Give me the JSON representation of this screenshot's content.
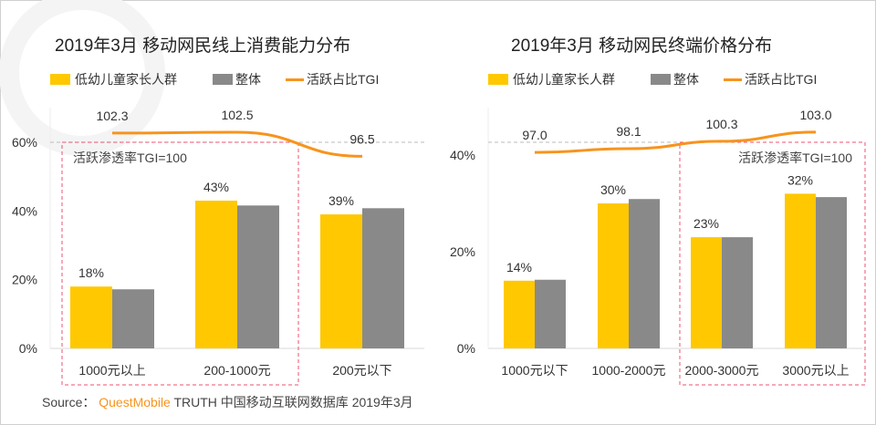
{
  "colors": {
    "child_parent": "#ffc800",
    "overall": "#898989",
    "tgi": "#f7941d",
    "box": "#f0506e"
  },
  "watermark": "QUESTMOBILE",
  "source": {
    "label": "Source：",
    "brand": "QuestMobile",
    "text": "TRUTH 中国移动互联网数据库 2019年3月"
  },
  "chart_data": [
    {
      "type": "bar",
      "title": "2019年3月 移动网民线上消费能力分布",
      "categories": [
        "1000元以上",
        "200-1000元",
        "200元以下"
      ],
      "yticks": [
        "0%",
        "20%",
        "40%",
        "60%"
      ],
      "ylim": [
        0,
        60
      ],
      "legend": [
        "低幼儿童家长人群",
        "整体",
        "活跃占比TGI"
      ],
      "legend_position": "top-left",
      "series": [
        {
          "name": "低幼儿童家长人群",
          "values": [
            18,
            43,
            39
          ],
          "labels": [
            "18%",
            "43%",
            "39%"
          ]
        },
        {
          "name": "整体",
          "values": [
            17.2,
            41.6,
            40.8
          ]
        },
        {
          "name": "活跃占比TGI",
          "type": "line",
          "values": [
            102.3,
            102.5,
            96.5
          ],
          "labels": [
            "102.3",
            "102.5",
            "96.5"
          ]
        }
      ],
      "reference": {
        "label": "活跃渗透率TGI=100",
        "value": 100
      },
      "highlight_categories": [
        0,
        1
      ]
    },
    {
      "type": "bar",
      "title": "2019年3月 移动网民终端价格分布",
      "categories": [
        "1000元以下",
        "1000-2000元",
        "2000-3000元",
        "3000元以上"
      ],
      "yticks": [
        "0%",
        "20%",
        "40%"
      ],
      "ylim": [
        0,
        40
      ],
      "legend": [
        "低幼儿童家长人群",
        "整体",
        "活跃占比TGI"
      ],
      "legend_position": "top-left",
      "series": [
        {
          "name": "低幼儿童家长人群",
          "values": [
            14,
            30,
            23,
            32
          ],
          "labels": [
            "14%",
            "30%",
            "23%",
            "32%"
          ]
        },
        {
          "name": "整体",
          "values": [
            14.2,
            30.9,
            23,
            31.3
          ]
        },
        {
          "name": "活跃占比TGI",
          "type": "line",
          "values": [
            97.0,
            98.1,
            100.3,
            103.0
          ],
          "labels": [
            "97.0",
            "98.1",
            "100.3",
            "103.0"
          ]
        }
      ],
      "reference": {
        "label": "活跃渗透率TGI=100",
        "value": 100
      },
      "highlight_categories": [
        2,
        3
      ]
    }
  ]
}
